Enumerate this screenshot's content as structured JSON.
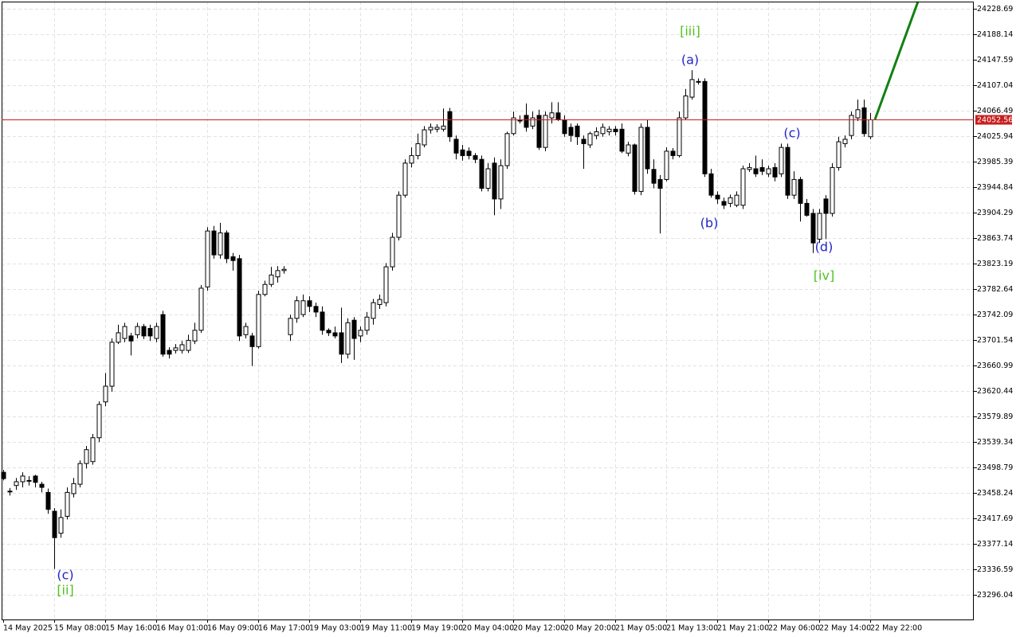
{
  "chart_data": {
    "type": "candlestick",
    "categories": [
      "14 May 2025",
      null,
      null,
      null,
      null,
      null,
      null,
      null,
      "15 May 08:00",
      null,
      null,
      null,
      null,
      null,
      null,
      null,
      "15 May 16:00",
      null,
      null,
      null,
      null,
      null,
      null,
      null,
      "16 May 01:00",
      null,
      null,
      null,
      null,
      null,
      null,
      null,
      "16 May 09:00",
      null,
      null,
      null,
      null,
      null,
      null,
      null,
      "16 May 17:00",
      null,
      null,
      null,
      null,
      null,
      null,
      null,
      "19 May 03:00",
      null,
      null,
      null,
      null,
      null,
      null,
      null,
      "19 May 11:00",
      null,
      null,
      null,
      null,
      null,
      null,
      null,
      "19 May 19:00",
      null,
      null,
      null,
      null,
      null,
      null,
      null,
      "20 May 04:00",
      null,
      null,
      null,
      null,
      null,
      null,
      null,
      "20 May 12:00",
      null,
      null,
      null,
      null,
      null,
      null,
      null,
      "20 May 20:00",
      null,
      null,
      null,
      null,
      null,
      null,
      null,
      "21 May 05:00",
      null,
      null,
      null,
      null,
      null,
      null,
      null,
      "21 May 13:00",
      null,
      null,
      null,
      null,
      null,
      null,
      null,
      "21 May 21:00",
      null,
      null,
      null,
      null,
      null,
      null,
      null,
      "22 May 06:00",
      null,
      null,
      null,
      null,
      null,
      null,
      null,
      "22 May 14:00",
      null,
      null,
      null,
      null,
      null,
      null,
      null,
      "22 May 22:00"
    ],
    "open": [
      23491,
      23461,
      23470,
      23476,
      23478,
      23485,
      23472,
      23459,
      23429,
      23394,
      23421,
      23457,
      23472,
      23505,
      23508,
      23546,
      23603,
      23628,
      23698,
      23704,
      23708,
      23710,
      23723,
      23720,
      23704,
      23742,
      23685,
      23685,
      23685,
      23685,
      23700,
      23717,
      23786,
      23875,
      23837,
      23872,
      23834,
      23831,
      23710,
      23708,
      23691,
      23774,
      23790,
      23802,
      23812,
      23710,
      23736,
      23742,
      23764,
      23755,
      23746,
      23717,
      23713,
      23713,
      23679,
      23733,
      23708,
      23717,
      23736,
      23758,
      23761,
      23818,
      23865,
      23932,
      23983,
      23995,
      24012,
      24036,
      24037,
      24037,
      24065,
      24021,
      24004,
      24002,
      23995,
      23989,
      23943,
      23983,
      23926,
      23979,
      24030,
      24052,
      24059,
      24042,
      24059,
      24008,
      24055,
      24063,
      24052,
      24040,
      24042,
      24021,
      24012,
      24027,
      24030,
      24033,
      24037,
      24037,
      23999,
      24012,
      23938,
      24040,
      23973,
      23957,
      23957,
      24002,
      23995,
      24055,
      24088,
      24113,
      24113,
      23966,
      23932,
      23922,
      23919,
      23916,
      23916,
      23973,
      23974,
      23976,
      23966,
      23976,
      23966,
      24008,
      23932,
      23957,
      23919,
      23903,
      23862,
      23926,
      23903,
      23976,
      24014,
      24027,
      24055,
      24071,
      24025
    ],
    "high": [
      23495,
      23466,
      23482,
      23491,
      23485,
      23487,
      23476,
      23465,
      23434,
      23432,
      23467,
      23482,
      23510,
      23533,
      23552,
      23604,
      23649,
      23704,
      23726,
      23729,
      23713,
      23729,
      23727,
      23726,
      23729,
      23748,
      23690,
      23695,
      23700,
      23710,
      23729,
      23789,
      23881,
      23883,
      23888,
      23876,
      23840,
      23837,
      23729,
      23713,
      23780,
      23796,
      23818,
      23819,
      23819,
      23742,
      23771,
      23774,
      23771,
      23761,
      23755,
      23720,
      23723,
      23753,
      23736,
      23738,
      23723,
      23746,
      23767,
      23774,
      23824,
      23872,
      23938,
      23989,
      24008,
      24030,
      24042,
      24046,
      24045,
      24070,
      24071,
      24027,
      24012,
      24008,
      23999,
      23995,
      23983,
      23992,
      23989,
      24033,
      24065,
      24059,
      24078,
      24065,
      24068,
      24065,
      24080,
      24080,
      24059,
      24046,
      24046,
      24027,
      24033,
      24040,
      24046,
      24042,
      24042,
      24046,
      24017,
      24014,
      24046,
      24052,
      23989,
      23964,
      24008,
      24007,
      24065,
      24101,
      24131,
      24118,
      24118,
      23974,
      23938,
      23928,
      23933,
      23938,
      23979,
      23983,
      23995,
      23989,
      23979,
      23983,
      24014,
      24014,
      23970,
      23961,
      23926,
      23910,
      23910,
      23932,
      23983,
      24025,
      24027,
      24065,
      24084,
      24084,
      24063
    ],
    "low": [
      23478,
      23454,
      23463,
      23467,
      23470,
      23467,
      23459,
      23425,
      23337,
      23387,
      23416,
      23451,
      23467,
      23497,
      23503,
      23539,
      23596,
      23619,
      23695,
      23698,
      23677,
      23704,
      23703,
      23700,
      23698,
      23675,
      23672,
      23680,
      23680,
      23681,
      23695,
      23713,
      23780,
      23831,
      23831,
      23824,
      23812,
      23700,
      23704,
      23660,
      23688,
      23771,
      23786,
      23793,
      23807,
      23700,
      23729,
      23738,
      23746,
      23738,
      23710,
      23708,
      23704,
      23665,
      23672,
      23670,
      23698,
      23710,
      23726,
      23751,
      23755,
      23812,
      23860,
      23928,
      23976,
      23989,
      24008,
      24030,
      24032,
      24033,
      24017,
      23989,
      23987,
      23989,
      23983,
      23938,
      23938,
      23900,
      23910,
      23974,
      24027,
      24046,
      24033,
      24037,
      24004,
      24002,
      24046,
      24050,
      24025,
      24017,
      24012,
      23974,
      24007,
      24021,
      24025,
      24027,
      24027,
      23999,
      23994,
      23933,
      23932,
      23966,
      23943,
      23871,
      23954,
      23989,
      23992,
      24052,
      24084,
      24108,
      23961,
      23928,
      23918,
      23910,
      23913,
      23913,
      23910,
      23969,
      23961,
      23964,
      23961,
      23954,
      23961,
      23926,
      23926,
      23890,
      23898,
      23840,
      23856,
      23862,
      23898,
      23971,
      24008,
      24021,
      24050,
      24025,
      24021
    ],
    "close": [
      23481,
      23461,
      23476,
      23485,
      23478,
      23475,
      23467,
      23432,
      23387,
      23419,
      23459,
      23473,
      23505,
      23527,
      23546,
      23599,
      23628,
      23698,
      23713,
      23723,
      23700,
      23723,
      23708,
      23708,
      23723,
      23679,
      23679,
      23689,
      23694,
      23701,
      23717,
      23784,
      23875,
      23837,
      23872,
      23831,
      23828,
      23708,
      23723,
      23691,
      23774,
      23790,
      23805,
      23812,
      23814,
      23736,
      23764,
      23764,
      23755,
      23746,
      23717,
      23713,
      23708,
      23679,
      23729,
      23704,
      23717,
      23738,
      23761,
      23766,
      23818,
      23865,
      23932,
      23983,
      23995,
      24014,
      24036,
      24040,
      24040,
      24042,
      24025,
      23999,
      23995,
      23995,
      23989,
      23943,
      23974,
      23926,
      23979,
      24030,
      24055,
      24050,
      24040,
      24055,
      24008,
      24059,
      24063,
      24052,
      24030,
      24027,
      24025,
      24014,
      24030,
      24033,
      24040,
      24037,
      24033,
      24002,
      24012,
      23938,
      24040,
      23974,
      23951,
      23943,
      24002,
      23995,
      24055,
      24090,
      24116,
      24113,
      23966,
      23932,
      23926,
      23916,
      23928,
      23932,
      23974,
      23976,
      23966,
      23970,
      23974,
      23961,
      24008,
      23932,
      23957,
      23919,
      23900,
      23856,
      23903,
      23903,
      23976,
      24017,
      24021,
      24059,
      24068,
      24030,
      24052
    ],
    "ylim": [
      23256.76,
      24240.09
    ],
    "yticks": [
      24228.69,
      24188.14,
      24147.59,
      24107.04,
      24066.49,
      24025.94,
      23985.39,
      23944.84,
      23904.29,
      23863.74,
      23823.19,
      23782.64,
      23742.09,
      23701.54,
      23660.99,
      23620.44,
      23579.89,
      23539.34,
      23498.79,
      23458.24,
      23417.69,
      23377.14,
      23336.59,
      23296.04
    ],
    "grid": true,
    "current_price": 24052.56,
    "current_price_color": "#c81e1e",
    "bull_color": "#ffffff",
    "bear_color": "#000000",
    "annotations": [
      {
        "text": "(c)",
        "color": "#2323c8"
      },
      {
        "text": "[ii]",
        "color": "#4fc21f"
      },
      {
        "text": "[iii]",
        "color": "#4fc21f"
      },
      {
        "text": "(a)",
        "color": "#2323c8"
      },
      {
        "text": "(b)",
        "color": "#2323c8"
      },
      {
        "text": "(c)",
        "color": "#2323c8"
      },
      {
        "text": "(d)",
        "color": "#2323c8"
      },
      {
        "text": "[iv]",
        "color": "#4fc21f"
      }
    ]
  }
}
